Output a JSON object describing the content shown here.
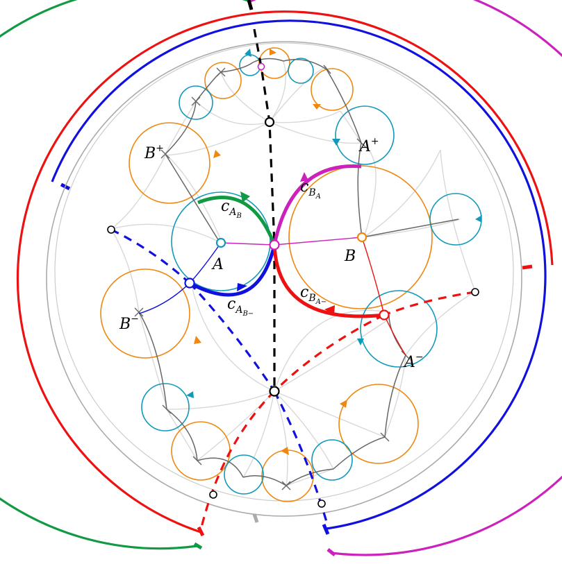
{
  "colors": {
    "green": "#119944",
    "red": "#ee1111",
    "blue": "#1111dd",
    "magenta": "#cc22bb",
    "orange": "#ee8811",
    "teal": "#1199bb",
    "gray": "#aaaaaa",
    "lightgray": "#d8d8d8",
    "darkgray": "#666666",
    "black": "#000000"
  },
  "labels": {
    "A": {
      "base": "A",
      "sup": "",
      "sub": "",
      "subsub": ""
    },
    "B": {
      "base": "B",
      "sup": "",
      "sub": "",
      "subsub": ""
    },
    "A_plus": {
      "base": "A",
      "sup": "+",
      "sub": "",
      "subsub": ""
    },
    "A_minus": {
      "base": "A",
      "sup": "−",
      "sub": "",
      "subsub": ""
    },
    "B_plus": {
      "base": "B",
      "sup": "+",
      "sub": "",
      "subsub": ""
    },
    "B_minus": {
      "base": "B",
      "sup": "−",
      "sub": "",
      "subsub": ""
    },
    "c_A_B": {
      "base": "c",
      "sub": "A",
      "subsub": "B",
      "sup": ""
    },
    "c_A_Bminus": {
      "base": "c",
      "sub": "A",
      "subsub": "B−",
      "sup": ""
    },
    "c_B_A": {
      "base": "c",
      "sub": "B",
      "subsub": "A",
      "sup": ""
    },
    "c_B_Aminus": {
      "base": "c",
      "sub": "B",
      "subsub": "A−",
      "sup": ""
    }
  },
  "icons": {
    "arrowhead": "triangle-arrow-icon",
    "vertex": "circle-vertex-icon",
    "tick": "tick-mark-icon"
  }
}
